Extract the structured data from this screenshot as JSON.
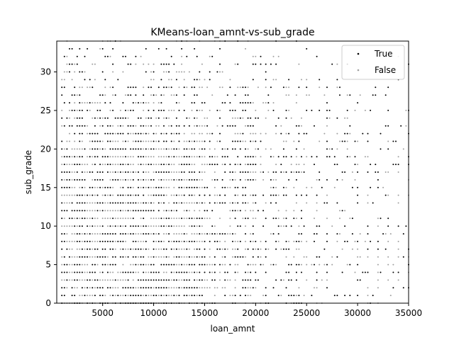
{
  "chart_data": {
    "type": "scatter",
    "title": "KMeans-loan_amnt-vs-sub_grade",
    "xlabel": "loan_amnt",
    "ylabel": "sub_grade",
    "xlim": [
      500,
      35000
    ],
    "ylim": [
      0,
      34
    ],
    "xticks": [
      5000,
      10000,
      15000,
      20000,
      25000,
      30000,
      35000
    ],
    "yticks": [
      0,
      5,
      10,
      15,
      20,
      25,
      30
    ],
    "grid": false,
    "legend_position": "top-right",
    "marker": "point",
    "y_levels": {
      "min": 0,
      "max": 34,
      "step": 1
    },
    "series": [
      {
        "name": "True",
        "color": "#000000",
        "description_density": "dense for loan_amnt below ~17000 and sub_grade below ~21, sparse elsewhere"
      },
      {
        "name": "False",
        "color": "#a0a0a0",
        "description_density": "interleaved with True, similar distribution"
      }
    ]
  }
}
